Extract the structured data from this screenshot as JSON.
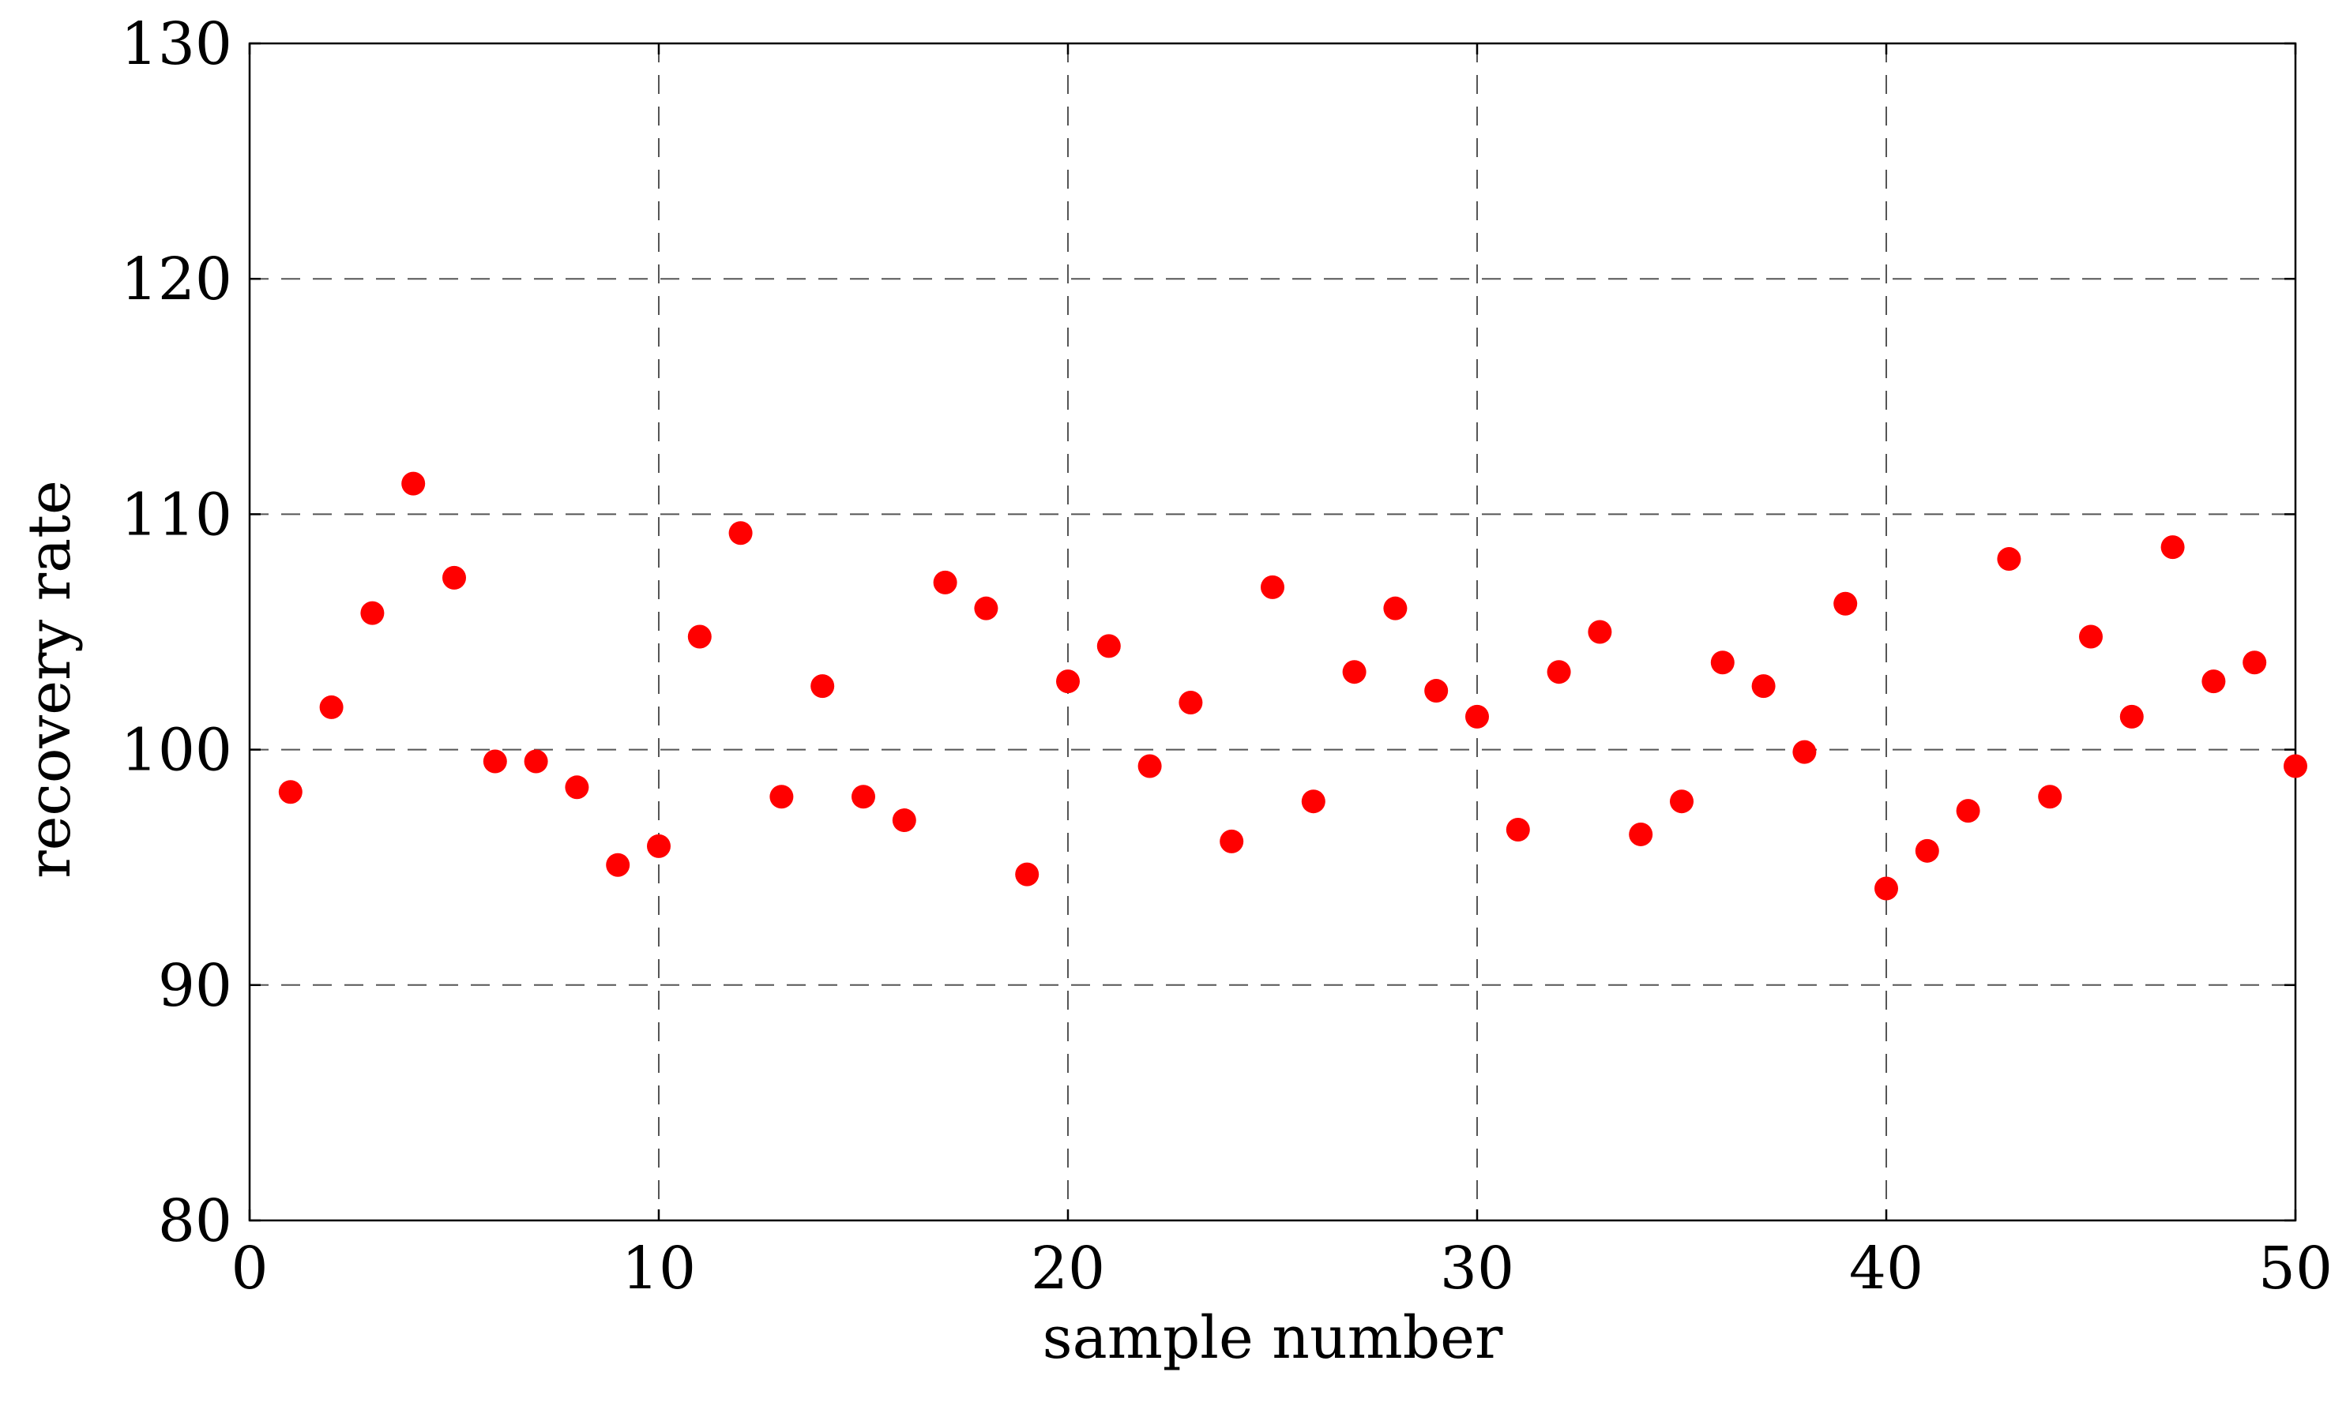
{
  "chart_data": {
    "type": "scatter",
    "title": "",
    "xlabel": "sample number",
    "ylabel": "recovery rate",
    "xlim": [
      0,
      50
    ],
    "ylim": [
      80,
      130
    ],
    "xticks": [
      0,
      10,
      20,
      30,
      40,
      50
    ],
    "yticks": [
      80,
      90,
      100,
      110,
      120,
      130
    ],
    "grid": true,
    "marker_color": "#ff0000",
    "series": [
      {
        "x": [
          1,
          2,
          3,
          4,
          5,
          6,
          7,
          8,
          9,
          10,
          11,
          12,
          13,
          14,
          15,
          16,
          17,
          18,
          19,
          20,
          21,
          22,
          23,
          24,
          25,
          26,
          27,
          28,
          29,
          30,
          31,
          32,
          33,
          34,
          35,
          36,
          37,
          38,
          39,
          40,
          41,
          42,
          43,
          44,
          45,
          46,
          47,
          48,
          49,
          50
        ],
        "y": [
          98.2,
          101.8,
          105.8,
          111.3,
          107.3,
          99.5,
          99.5,
          98.4,
          95.1,
          95.9,
          104.8,
          109.2,
          98.0,
          102.7,
          98.0,
          97.0,
          107.1,
          106.0,
          94.7,
          102.9,
          104.4,
          99.3,
          102.0,
          96.1,
          106.9,
          97.8,
          103.3,
          106.0,
          102.5,
          101.4,
          96.6,
          103.3,
          105.0,
          96.4,
          97.8,
          103.7,
          102.7,
          99.9,
          106.2,
          94.1,
          95.7,
          97.4,
          108.1,
          98.0,
          104.8,
          101.4,
          108.6,
          102.9,
          103.7,
          99.3
        ]
      }
    ]
  }
}
